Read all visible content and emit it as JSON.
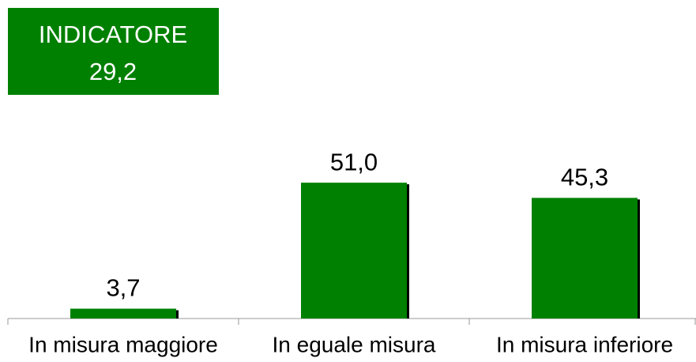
{
  "indicator": [
    "INDICATORE",
    "29,2"
  ],
  "chart_data": {
    "type": "bar",
    "categories": [
      "In misura maggiore",
      "In eguale misura",
      "In misura inferiore"
    ],
    "values": [
      3.7,
      51.0,
      45.3
    ],
    "value_labels": [
      "3,7",
      "51,0",
      "45,3"
    ],
    "color": "#008000"
  }
}
